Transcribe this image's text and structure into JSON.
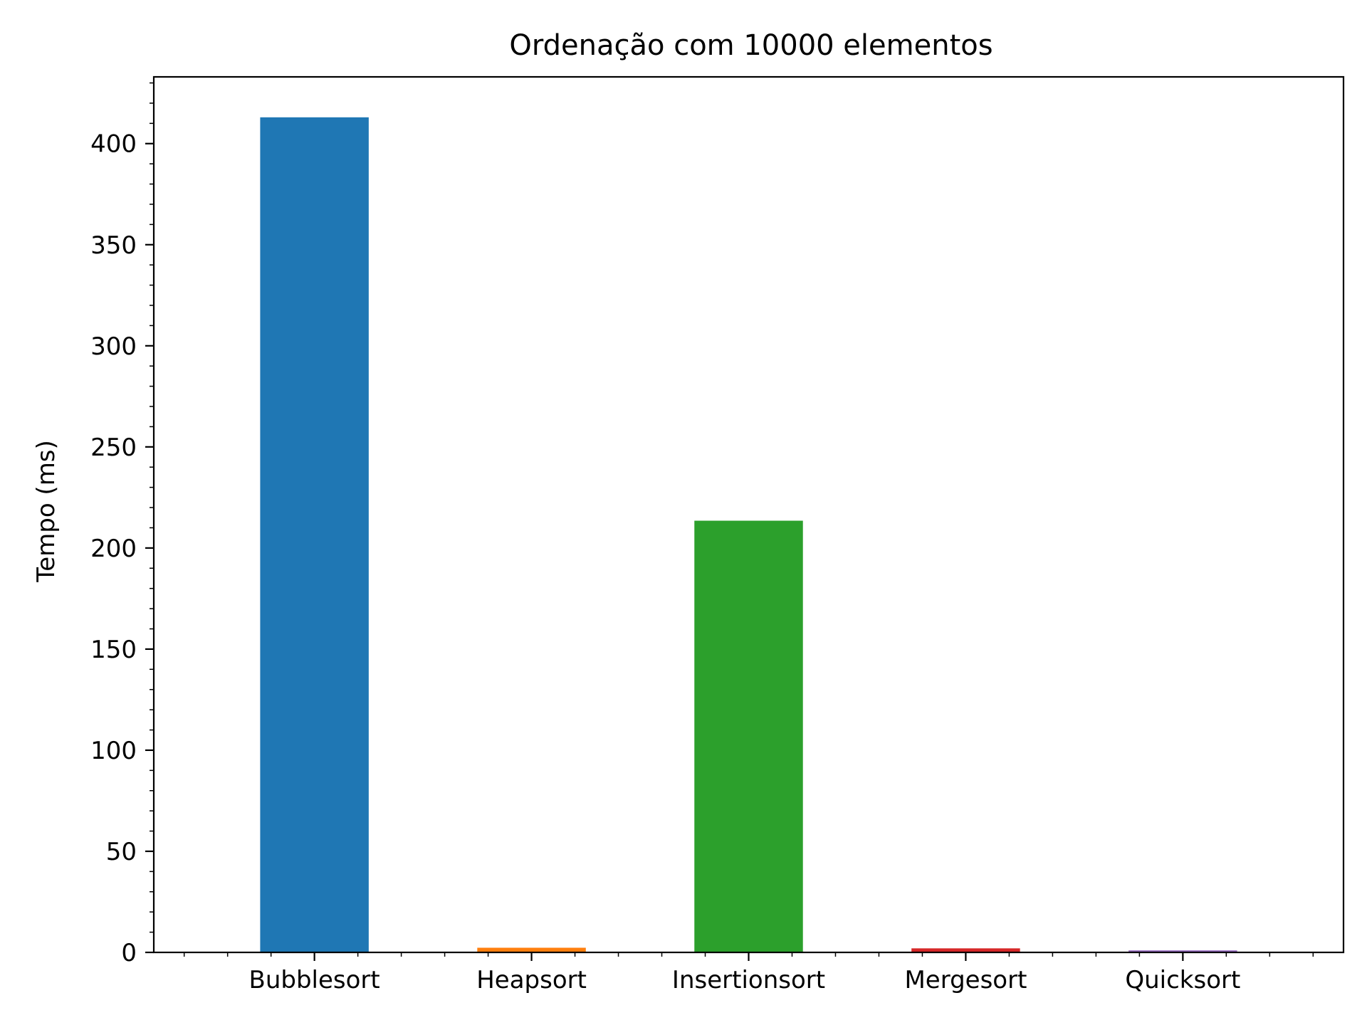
{
  "chart_data": {
    "type": "bar",
    "title": "Ordenação com 10000 elementos",
    "xlabel": "",
    "ylabel": "Tempo (ms)",
    "categories": [
      "Bubblesort",
      "Heapsort",
      "Insertionsort",
      "Mergesort",
      "Quicksort"
    ],
    "values": [
      413,
      2.3,
      213.5,
      2.0,
      1.0
    ],
    "colors": [
      "#1f77b4",
      "#ff7f0e",
      "#2ca02c",
      "#d62728",
      "#9467bd"
    ],
    "ylim": [
      0,
      433
    ],
    "yticks": [
      0,
      50,
      100,
      150,
      200,
      250,
      300,
      350,
      400
    ],
    "ytick_labels": [
      "0",
      "50",
      "100",
      "150",
      "200",
      "250",
      "300",
      "350",
      "400"
    ],
    "y_minor_step": 10,
    "x_minor_ticks": true,
    "grid": false,
    "legend": "none"
  }
}
